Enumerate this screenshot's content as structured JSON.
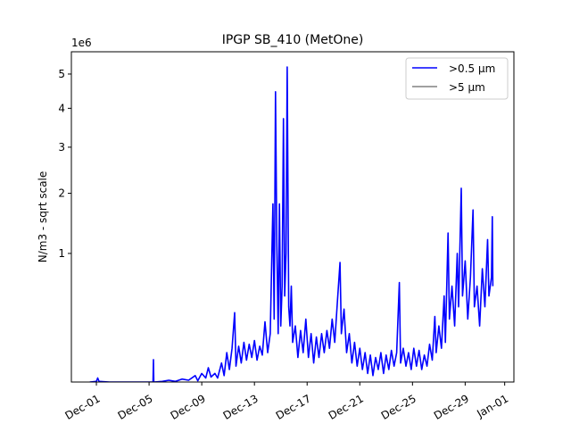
{
  "chart_data": {
    "type": "line",
    "title": "IPGP SB_410 (MetOne)",
    "ylabel": "N/m3 - sqrt scale",
    "xlabel": "",
    "y_scale": "sqrt",
    "y_offset_label": "1e6",
    "y_unit_multiplier": 1000000,
    "ylim": [
      0.013,
      5.71
    ],
    "yticks": [
      1,
      2,
      3,
      4,
      5
    ],
    "ytick_labels": [
      "1",
      "2",
      "3",
      "4",
      "5"
    ],
    "x_units": "days since Dec-01",
    "xlim": [
      -1.9,
      31.7
    ],
    "xticks": [
      0,
      4,
      8,
      12,
      16,
      20,
      24,
      28,
      31
    ],
    "xtick_labels": [
      "Dec-01",
      "Dec-05",
      "Dec-09",
      "Dec-13",
      "Dec-17",
      "Dec-21",
      "Dec-25",
      "Dec-29",
      "Jan-01"
    ],
    "grid": false,
    "legend": {
      "position": "top-right",
      "entries": [
        {
          "label": ">0.5 µm",
          "color": "#0000ff"
        },
        {
          "label": ">5 µm",
          "color": "#808080"
        }
      ]
    },
    "series": [
      {
        "name": ">0.5 µm",
        "color": "#0000ff",
        "points": [
          [
            -0.5,
            0.013
          ],
          [
            0,
            0.014
          ],
          [
            0.1,
            0.02
          ],
          [
            0.2,
            0.014
          ],
          [
            1,
            0.013
          ],
          [
            2,
            0.013
          ],
          [
            3,
            0.013
          ],
          [
            4.3,
            0.013
          ],
          [
            4.33,
            0.072
          ],
          [
            4.36,
            0.013
          ],
          [
            5,
            0.014
          ],
          [
            5.5,
            0.016
          ],
          [
            6,
            0.014
          ],
          [
            6.5,
            0.018
          ],
          [
            7,
            0.016
          ],
          [
            7.5,
            0.025
          ],
          [
            7.7,
            0.015
          ],
          [
            8,
            0.03
          ],
          [
            8.3,
            0.02
          ],
          [
            8.5,
            0.045
          ],
          [
            8.7,
            0.022
          ],
          [
            9,
            0.03
          ],
          [
            9.2,
            0.02
          ],
          [
            9.5,
            0.06
          ],
          [
            9.7,
            0.025
          ],
          [
            9.9,
            0.1
          ],
          [
            10.1,
            0.04
          ],
          [
            10.3,
            0.12
          ],
          [
            10.5,
            0.35
          ],
          [
            10.6,
            0.05
          ],
          [
            10.8,
            0.13
          ],
          [
            11,
            0.06
          ],
          [
            11.2,
            0.15
          ],
          [
            11.4,
            0.07
          ],
          [
            11.6,
            0.14
          ],
          [
            11.8,
            0.08
          ],
          [
            12,
            0.16
          ],
          [
            12.2,
            0.07
          ],
          [
            12.4,
            0.13
          ],
          [
            12.6,
            0.09
          ],
          [
            12.8,
            0.28
          ],
          [
            13,
            0.1
          ],
          [
            13.2,
            0.2
          ],
          [
            13.4,
            1.8
          ],
          [
            13.5,
            0.3
          ],
          [
            13.6,
            4.47
          ],
          [
            13.7,
            1.1
          ],
          [
            13.8,
            0.2
          ],
          [
            13.9,
            1.8
          ],
          [
            14.0,
            0.25
          ],
          [
            14.1,
            0.6
          ],
          [
            14.2,
            3.72
          ],
          [
            14.3,
            0.5
          ],
          [
            14.4,
            1.0
          ],
          [
            14.49,
            5.22
          ],
          [
            14.6,
            0.4
          ],
          [
            14.7,
            0.25
          ],
          [
            14.8,
            0.6
          ],
          [
            14.9,
            0.15
          ],
          [
            15.1,
            0.25
          ],
          [
            15.3,
            0.08
          ],
          [
            15.5,
            0.22
          ],
          [
            15.7,
            0.1
          ],
          [
            15.9,
            0.3
          ],
          [
            16.1,
            0.08
          ],
          [
            16.3,
            0.2
          ],
          [
            16.5,
            0.06
          ],
          [
            16.7,
            0.18
          ],
          [
            16.9,
            0.08
          ],
          [
            17.1,
            0.2
          ],
          [
            17.3,
            0.1
          ],
          [
            17.5,
            0.22
          ],
          [
            17.7,
            0.12
          ],
          [
            17.9,
            0.3
          ],
          [
            18.1,
            0.15
          ],
          [
            18.3,
            0.45
          ],
          [
            18.5,
            0.88
          ],
          [
            18.6,
            0.2
          ],
          [
            18.8,
            0.38
          ],
          [
            19,
            0.1
          ],
          [
            19.2,
            0.2
          ],
          [
            19.4,
            0.06
          ],
          [
            19.6,
            0.15
          ],
          [
            19.8,
            0.05
          ],
          [
            20,
            0.12
          ],
          [
            20.2,
            0.04
          ],
          [
            20.4,
            0.1
          ],
          [
            20.6,
            0.03
          ],
          [
            20.8,
            0.09
          ],
          [
            21,
            0.025
          ],
          [
            21.2,
            0.08
          ],
          [
            21.4,
            0.04
          ],
          [
            21.6,
            0.1
          ],
          [
            21.8,
            0.03
          ],
          [
            22,
            0.09
          ],
          [
            22.2,
            0.04
          ],
          [
            22.4,
            0.11
          ],
          [
            22.6,
            0.05
          ],
          [
            22.8,
            0.1
          ],
          [
            23.0,
            0.64
          ],
          [
            23.1,
            0.06
          ],
          [
            23.3,
            0.12
          ],
          [
            23.5,
            0.05
          ],
          [
            23.7,
            0.1
          ],
          [
            23.9,
            0.04
          ],
          [
            24.1,
            0.12
          ],
          [
            24.3,
            0.05
          ],
          [
            24.5,
            0.11
          ],
          [
            24.7,
            0.04
          ],
          [
            24.9,
            0.09
          ],
          [
            25.1,
            0.05
          ],
          [
            25.3,
            0.14
          ],
          [
            25.5,
            0.07
          ],
          [
            25.7,
            0.32
          ],
          [
            25.8,
            0.1
          ],
          [
            26,
            0.25
          ],
          [
            26.2,
            0.12
          ],
          [
            26.4,
            0.5
          ],
          [
            26.5,
            0.15
          ],
          [
            26.7,
            1.3
          ],
          [
            26.8,
            0.3
          ],
          [
            27,
            0.6
          ],
          [
            27.2,
            0.25
          ],
          [
            27.4,
            1.0
          ],
          [
            27.5,
            0.4
          ],
          [
            27.7,
            2.1
          ],
          [
            27.8,
            0.5
          ],
          [
            28,
            0.9
          ],
          [
            28.2,
            0.3
          ],
          [
            28.4,
            0.7
          ],
          [
            28.6,
            1.69
          ],
          [
            28.7,
            0.4
          ],
          [
            28.9,
            0.6
          ],
          [
            29.1,
            0.25
          ],
          [
            29.3,
            0.8
          ],
          [
            29.5,
            0.4
          ],
          [
            29.7,
            1.2
          ],
          [
            29.8,
            0.5
          ],
          [
            30,
            0.7
          ],
          [
            30.06,
            1.57
          ],
          [
            30.1,
            0.6
          ]
        ]
      },
      {
        "name": ">5 µm",
        "color": "#808080",
        "points": []
      }
    ]
  }
}
